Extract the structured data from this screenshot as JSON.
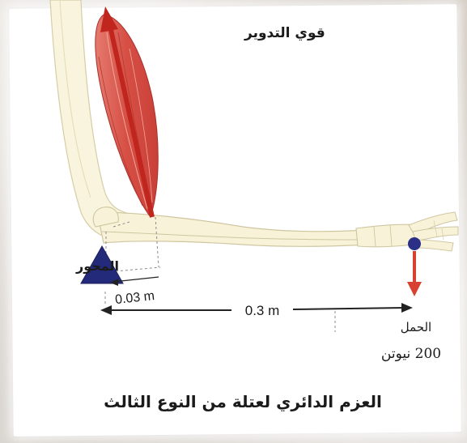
{
  "labels": {
    "muscle": "قوي التدوير",
    "pivot": "المحور",
    "load_title": "الحمل",
    "load_value": "200 نيوتن",
    "short_distance": "0.03 m",
    "long_distance": "0.3 m",
    "caption": "العزم الدائري لعتلة من النوع الثالث"
  },
  "colors": {
    "muscle": "#d64f45",
    "muscle_arrow": "#c0261e",
    "load_arrow": "#d8412f",
    "pivot": "#242a7a",
    "load_ball": "#2c2f86",
    "bone_fill": "#f7f2d8",
    "bone_stroke": "#cfc6a0"
  }
}
